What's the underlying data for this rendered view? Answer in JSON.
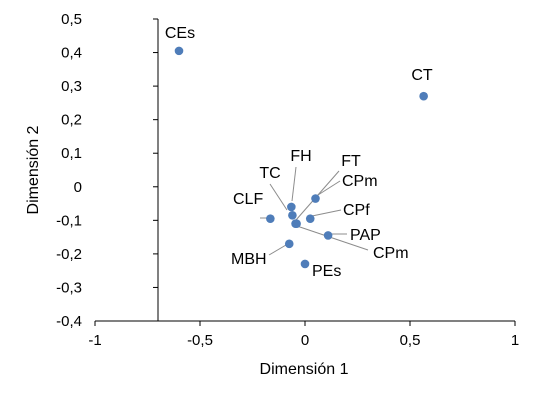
{
  "chart_data": {
    "type": "scatter",
    "title": "",
    "xlabel": "Dimensión 1",
    "ylabel": "Dimensión 2",
    "xlim": [
      -1,
      1
    ],
    "ylim": [
      -0.4,
      0.5
    ],
    "x_ticks": [
      -1,
      -0.5,
      0,
      0.5,
      1
    ],
    "x_tick_labels": [
      "-1",
      "-0,5",
      "0",
      "0,5",
      "1"
    ],
    "y_ticks": [
      0.5,
      0.4,
      0.3,
      0.2,
      0.1,
      0,
      -0.1,
      -0.2,
      -0.3,
      -0.4
    ],
    "y_tick_labels": [
      "0,5",
      "0,4",
      "0,3",
      "0,2",
      "0,1",
      "0",
      "-0,1",
      "-0,2",
      "-0,3",
      "-0,4"
    ],
    "y_axis_crosses_at_x": -0.7,
    "grid": false,
    "marker_color": "#4f7db9",
    "points": [
      {
        "label": "CEs",
        "x": -0.6,
        "y": 0.405
      },
      {
        "label": "CT",
        "x": 0.565,
        "y": 0.27
      },
      {
        "label": "FH",
        "x": -0.065,
        "y": -0.06
      },
      {
        "label": "TC",
        "x": -0.06,
        "y": -0.085
      },
      {
        "label": "FT",
        "x": -0.045,
        "y": -0.11
      },
      {
        "label": "CPm",
        "x": 0.05,
        "y": -0.035
      },
      {
        "label": "CPf",
        "x": 0.025,
        "y": -0.095
      },
      {
        "label": "CLF",
        "x": -0.165,
        "y": -0.095
      },
      {
        "label": "PAP",
        "x": 0.11,
        "y": -0.145
      },
      {
        "label": "CPm",
        "x": -0.04,
        "y": -0.11
      },
      {
        "label": "MBH",
        "x": -0.075,
        "y": -0.17
      },
      {
        "label": "PEs",
        "x": 0.0,
        "y": -0.23
      }
    ]
  }
}
